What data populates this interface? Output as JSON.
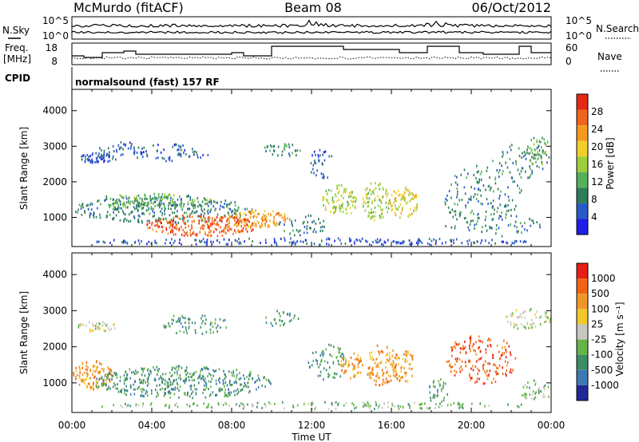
{
  "header": {
    "station": "McMurdo (fitACF)",
    "beam": "Beam 08",
    "date": "06/Oct/2012"
  },
  "aux": {
    "nsky_label": "N.Sky",
    "nsearch_label": "N.Search",
    "noise_ticks": [
      "10^5",
      "10^0"
    ],
    "freq_label_1": "Freq.",
    "freq_label_2": "[MHz]",
    "freq_ticks": [
      "18",
      "8"
    ],
    "nave_label": "Nave",
    "nave_ticks": [
      "60",
      "0"
    ],
    "cpid_label": "CPID",
    "cpid_value": "normalsound (fast) 157 RF"
  },
  "colors": {
    "power": [
      "#1e1ee6",
      "#2a5ac8",
      "#2e7d5a",
      "#55b05a",
      "#9ccd3c",
      "#f0d028",
      "#f59a1e",
      "#f0641e",
      "#e62814"
    ],
    "velocity": [
      "#1e2896",
      "#3c78b4",
      "#3c8c64",
      "#64b446",
      "#c8c8c0",
      "#f0c828",
      "#f09628",
      "#f06414",
      "#e61e14"
    ]
  },
  "chart_data": [
    {
      "type": "heatmap",
      "name": "power",
      "ylabel": "Slant Range [km]",
      "xlabel": "Time UT",
      "xticks": [
        "00:00",
        "04:00",
        "08:00",
        "12:00",
        "16:00",
        "20:00",
        "00:00"
      ],
      "yticks": [
        "1000",
        "2000",
        "3000",
        "4000"
      ],
      "xlim_hours": [
        0,
        24
      ],
      "ylim_km": [
        180,
        4600
      ],
      "colorbar_label": "Power [dB]",
      "colorbar_ticks": [
        "28",
        "24",
        "20",
        "16",
        "12",
        "8",
        "4"
      ]
    },
    {
      "type": "heatmap",
      "name": "velocity",
      "ylabel": "Slant Range [km]",
      "xlabel": "Time UT",
      "xticks": [
        "00:00",
        "04:00",
        "08:00",
        "12:00",
        "16:00",
        "20:00",
        "00:00"
      ],
      "yticks": [
        "1000",
        "2000",
        "3000",
        "4000"
      ],
      "xlim_hours": [
        0,
        24
      ],
      "ylim_km": [
        180,
        4600
      ],
      "colorbar_label": "Velocity [m s⁻¹]",
      "colorbar_ticks": [
        "1000",
        "500",
        "100",
        "25",
        "-25",
        "-100",
        "-500",
        "-1000"
      ]
    }
  ]
}
